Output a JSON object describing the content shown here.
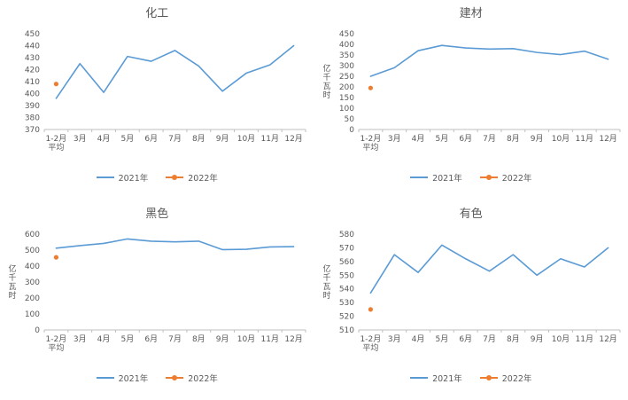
{
  "colors": {
    "series_2021": "#5B9BD5",
    "series_2022": "#ED7D31",
    "axis_text": "#595959",
    "axis_line": "#BFBFBF",
    "title_text": "#595959",
    "background": "#FFFFFF"
  },
  "chart_data": [
    {
      "type": "line",
      "title": "化工",
      "ylabel": "",
      "categories": [
        "1-2月\n平均",
        "3月",
        "4月",
        "5月",
        "6月",
        "7月",
        "8月",
        "9月",
        "10月",
        "11月",
        "12月"
      ],
      "ylim": [
        370,
        450
      ],
      "ytick_step": 10,
      "grid": false,
      "legend_position": "bottom",
      "series": [
        {
          "name": "2021年",
          "type": "line",
          "color": "#5B9BD5",
          "values": [
            396,
            425,
            401,
            431,
            427,
            436,
            423,
            402,
            417,
            424,
            440
          ]
        },
        {
          "name": "2022年",
          "type": "scatter",
          "color": "#ED7D31",
          "values": [
            408,
            null,
            null,
            null,
            null,
            null,
            null,
            null,
            null,
            null,
            null
          ]
        }
      ]
    },
    {
      "type": "line",
      "title": "建材",
      "ylabel": "亿千瓦时",
      "categories": [
        "1-2月\n平均",
        "3月",
        "4月",
        "5月",
        "6月",
        "7月",
        "8月",
        "9月",
        "10月",
        "11月",
        "12月"
      ],
      "ylim": [
        0,
        450
      ],
      "ytick_step": 50,
      "grid": false,
      "legend_position": "bottom",
      "series": [
        {
          "name": "2021年",
          "type": "line",
          "color": "#5B9BD5",
          "values": [
            250,
            290,
            370,
            395,
            383,
            378,
            380,
            362,
            352,
            368,
            330
          ]
        },
        {
          "name": "2022年",
          "type": "scatter",
          "color": "#ED7D31",
          "values": [
            195,
            null,
            null,
            null,
            null,
            null,
            null,
            null,
            null,
            null,
            null
          ]
        }
      ]
    },
    {
      "type": "line",
      "title": "黑色",
      "ylabel": "亿千瓦时",
      "categories": [
        "1-2月\n平均",
        "3月",
        "4月",
        "5月",
        "6月",
        "7月",
        "8月",
        "9月",
        "10月",
        "11月",
        "12月"
      ],
      "ylim": [
        0,
        600
      ],
      "ytick_step": 100,
      "grid": false,
      "legend_position": "bottom",
      "series": [
        {
          "name": "2021年",
          "type": "line",
          "color": "#5B9BD5",
          "values": [
            512,
            528,
            542,
            570,
            556,
            552,
            556,
            503,
            505,
            520,
            522
          ]
        },
        {
          "name": "2022年",
          "type": "scatter",
          "color": "#ED7D31",
          "values": [
            455,
            null,
            null,
            null,
            null,
            null,
            null,
            null,
            null,
            null,
            null
          ]
        }
      ]
    },
    {
      "type": "line",
      "title": "有色",
      "ylabel": "亿千瓦时",
      "categories": [
        "1-2月\n平均",
        "3月",
        "4月",
        "5月",
        "6月",
        "7月",
        "8月",
        "9月",
        "10月",
        "11月",
        "12月"
      ],
      "ylim": [
        510,
        580
      ],
      "ytick_step": 10,
      "grid": false,
      "legend_position": "bottom",
      "series": [
        {
          "name": "2021年",
          "type": "line",
          "color": "#5B9BD5",
          "values": [
            537,
            565,
            552,
            572,
            562,
            553,
            565,
            550,
            562,
            556,
            570
          ]
        },
        {
          "name": "2022年",
          "type": "scatter",
          "color": "#ED7D31",
          "values": [
            525,
            null,
            null,
            null,
            null,
            null,
            null,
            null,
            null,
            null,
            null
          ]
        }
      ]
    }
  ]
}
